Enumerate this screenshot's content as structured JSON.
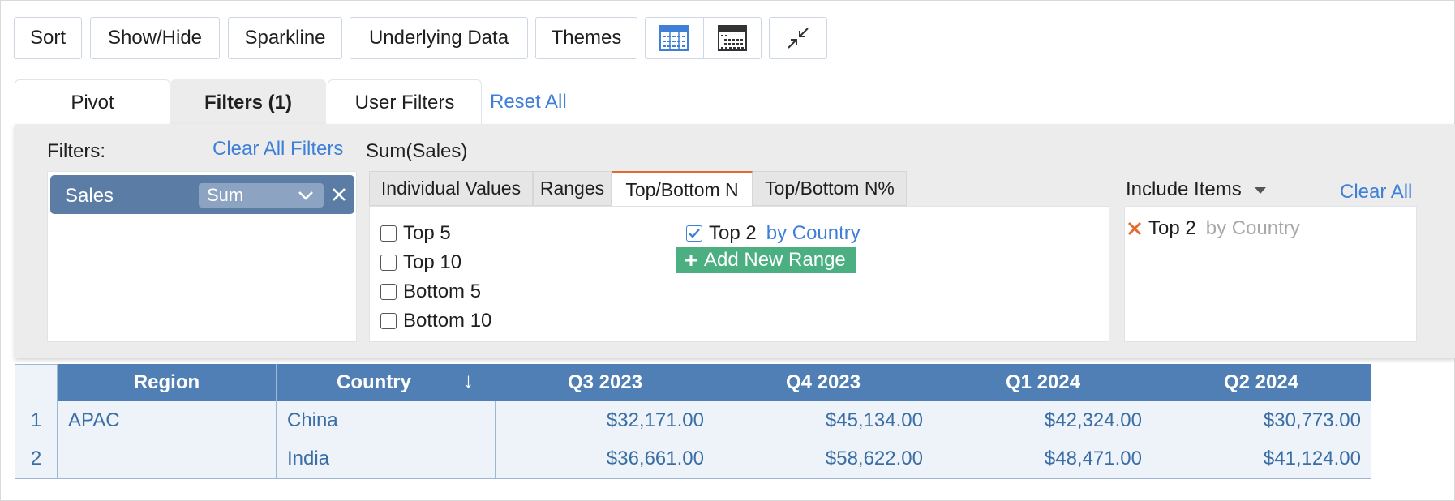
{
  "toolbar": {
    "sort": "Sort",
    "show_hide": "Show/Hide",
    "sparkline": "Sparkline",
    "underlying_data": "Underlying Data",
    "themes": "Themes"
  },
  "tabs": {
    "pivot": "Pivot",
    "filters": "Filters  (1)",
    "user_filters": "User Filters",
    "reset_all": "Reset All"
  },
  "filters_panel": {
    "filters_label": "Filters:",
    "clear_all_filters": "Clear All Filters",
    "chip": {
      "name": "Sales",
      "aggregate": "Sum"
    },
    "measure_title": "Sum(Sales)",
    "subtabs": [
      "Individual Values",
      "Ranges",
      "Top/Bottom N",
      "Top/Bottom N%"
    ],
    "active_subtab": "Top/Bottom N",
    "options": [
      "Top 5",
      "Top 10",
      "Bottom 5",
      "Bottom 10"
    ],
    "custom_range": {
      "label": "Top 2",
      "by": "by Country",
      "checked": true
    },
    "add_new_range": "Add New Range",
    "include": {
      "label": "Include Items",
      "clear_all": "Clear All",
      "item_label": "Top 2",
      "item_by": "by Country"
    }
  },
  "table": {
    "headers": [
      "Region",
      "Country",
      "Q3 2023",
      "Q4 2023",
      "Q1 2024",
      "Q2 2024"
    ],
    "sort_indicator": "↓",
    "rows": [
      {
        "num": "1",
        "region": "APAC",
        "country": "China",
        "values": [
          "$32,171.00",
          "$45,134.00",
          "$42,324.00",
          "$30,773.00"
        ]
      },
      {
        "num": "2",
        "region": "",
        "country": "India",
        "values": [
          "$36,661.00",
          "$58,622.00",
          "$48,471.00",
          "$41,124.00"
        ]
      }
    ]
  },
  "colors": {
    "accent": "#3f7fd8",
    "header_blue": "#4f7fb5",
    "chip": "#5b7ca5",
    "add_green": "#4caf82",
    "active_tab_border": "#e06b2d"
  }
}
